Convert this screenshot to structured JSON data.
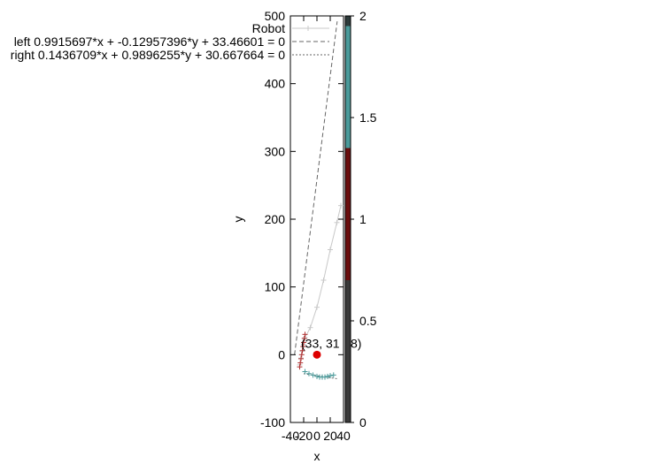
{
  "chart_data": {
    "type": "line",
    "xlabel": "x",
    "ylabel": "y",
    "xlim": [
      -40,
      40
    ],
    "ylim": [
      -100,
      500
    ],
    "x_ticks": [
      -40,
      -20,
      0,
      20,
      40
    ],
    "x_tick_labels": [
      "-40",
      "-20",
      "0",
      "20",
      "40"
    ],
    "y_ticks": [
      -100,
      0,
      100,
      200,
      300,
      400,
      500
    ],
    "colorbar": {
      "range": [
        0,
        2
      ],
      "ticks": [
        "0",
        "0.5",
        "1",
        "1.5",
        "2"
      ],
      "bands": [
        {
          "from": 0,
          "to": 0.7,
          "color": "#3a3a3a"
        },
        {
          "from": 0.7,
          "to": 1.35,
          "color": "#6a0d0d"
        },
        {
          "from": 1.35,
          "to": 1.95,
          "color": "#4a9a9a"
        },
        {
          "from": 1.95,
          "to": 2,
          "color": "#2e3b3b"
        }
      ]
    },
    "legend_position": "top-right",
    "series": [
      {
        "name": "Robot",
        "style": "line-points",
        "color": "#c8c8c8",
        "x": [
          -26,
          -24,
          -22,
          -20,
          -18,
          -10,
          0,
          10,
          20,
          30,
          36
        ],
        "y": [
          -15,
          -5,
          5,
          15,
          25,
          40,
          70,
          110,
          155,
          195,
          220
        ]
      },
      {
        "name": "left 0.9915697*x + -0.12957396*y + 33.46601 = 0",
        "style": "dashed",
        "color": "#666666",
        "x": [
          -33.75,
          30.5
        ],
        "y": [
          0,
          492
        ]
      },
      {
        "name": "right 0.1436709*x + 0.9896255*y + 30.667664 = 0",
        "style": "dotted",
        "color": "#666666",
        "x": [
          -20,
          30
        ],
        "y": [
          -28.1,
          -35.4
        ]
      },
      {
        "name": "",
        "style": "points",
        "color": "#b03030",
        "x": [
          -18,
          -19,
          -20,
          -21,
          -22,
          -23,
          -24,
          -25,
          -26
        ],
        "y": [
          30,
          24,
          18,
          12,
          6,
          0,
          -6,
          -12,
          -18
        ]
      },
      {
        "name": "",
        "style": "points",
        "color": "#4a9a9a",
        "x": [
          -18,
          -12,
          -6,
          0,
          4,
          8,
          12,
          16,
          20,
          25
        ],
        "y": [
          -25,
          -28,
          -30,
          -32,
          -33,
          -33,
          -33,
          -32,
          -31,
          -30
        ]
      }
    ],
    "points": [
      {
        "x": 0,
        "y": 0,
        "color": "#dd0000"
      }
    ],
    "annotations": [
      {
        "text": "(33, 31",
        "x": 0,
        "y": 0
      },
      {
        "text": "8)",
        "x": 0,
        "y": 0
      }
    ]
  }
}
